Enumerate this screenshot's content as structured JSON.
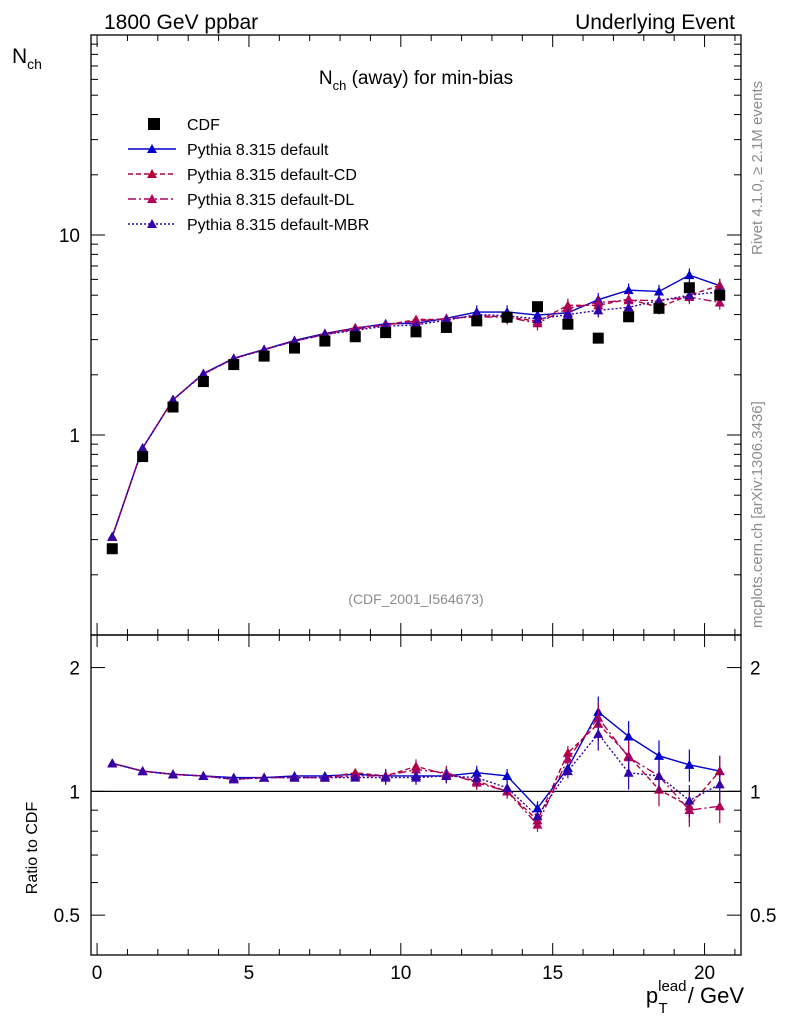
{
  "header": {
    "left": "1800 GeV ppbar",
    "right": "Underlying Event"
  },
  "side": {
    "rivet": "Rivet 4.1.0, ≥ 2.1M events",
    "mcplots": "mcplots.cern.ch [arXiv:1306.3436]"
  },
  "chart_data": {
    "type": "line",
    "title": "N_ch (away) for min-bias",
    "title_main": "N",
    "title_sub": "ch",
    "title_rest": " (away) for min-bias",
    "analysis_label": "(CDF_2001_I564673)",
    "ylabel_main": "N",
    "ylabel_sub": "ch",
    "ylabel_ratio": "Ratio to CDF",
    "xlabel_main": "p",
    "xlabel_sub": "T",
    "xlabel_sup": "lead",
    "xlabel_rest": " / GeV",
    "xlim": [
      -0.2,
      21.2
    ],
    "ylim": [
      0.1,
      100
    ],
    "yscale": "log",
    "ratio_ylim": [
      0.4,
      2.4
    ],
    "ratio_yscale": "log",
    "x_ticks": [
      0,
      5,
      10,
      15,
      20
    ],
    "x_tick_labels": [
      "0",
      "5",
      "10",
      "15",
      "20"
    ],
    "y_ticks": [
      1,
      10
    ],
    "y_tick_labels": [
      "1",
      "10"
    ],
    "ratio_ticks": [
      0.5,
      1,
      2
    ],
    "ratio_tick_labels": [
      "0.5",
      "1",
      "2"
    ],
    "x": [
      0.5,
      1.5,
      2.5,
      3.5,
      4.5,
      5.5,
      6.5,
      7.5,
      8.5,
      9.5,
      10.5,
      11.5,
      12.5,
      13.5,
      14.5,
      15.5,
      16.5,
      17.5,
      18.5,
      19.5,
      20.5
    ],
    "data": {
      "name": "CDF",
      "color": "#000000",
      "values": [
        0.27,
        0.78,
        1.38,
        1.85,
        2.25,
        2.48,
        2.72,
        2.95,
        3.1,
        3.25,
        3.28,
        3.45,
        3.72,
        3.88,
        4.38,
        3.58,
        3.05,
        3.9,
        4.3,
        5.45,
        5.0
      ]
    },
    "series": [
      {
        "name": "Pythia 8.315 default",
        "color": "#0000cc",
        "dash": "",
        "values": [
          0.31,
          0.86,
          1.5,
          2.03,
          2.42,
          2.68,
          2.97,
          3.22,
          3.42,
          3.6,
          3.62,
          3.83,
          4.12,
          4.12,
          3.98,
          4.08,
          4.75,
          5.3,
          5.22,
          6.3,
          5.58
        ],
        "ratio": [
          1.17,
          1.12,
          1.1,
          1.09,
          1.08,
          1.08,
          1.09,
          1.09,
          1.1,
          1.09,
          1.09,
          1.09,
          1.11,
          1.09,
          0.91,
          1.14,
          1.56,
          1.36,
          1.22,
          1.16,
          1.12
        ]
      },
      {
        "name": "Pythia 8.315 default-CD",
        "color": "#b0003e",
        "dash": "5,3",
        "values": [
          0.31,
          0.86,
          1.5,
          2.02,
          2.41,
          2.67,
          2.95,
          3.2,
          3.44,
          3.55,
          3.78,
          3.78,
          3.95,
          3.9,
          3.7,
          4.45,
          4.45,
          4.78,
          4.35,
          5.0,
          5.6
        ],
        "ratio": [
          1.17,
          1.12,
          1.1,
          1.09,
          1.07,
          1.08,
          1.08,
          1.08,
          1.11,
          1.09,
          1.15,
          1.1,
          1.06,
          1.0,
          0.85,
          1.24,
          1.46,
          1.22,
          1.01,
          0.92,
          1.12
        ]
      },
      {
        "name": "Pythia 8.315 default-DL",
        "color": "#b0005a",
        "dash": "8,3,2,3",
        "values": [
          0.31,
          0.86,
          1.5,
          2.02,
          2.41,
          2.67,
          2.95,
          3.18,
          3.38,
          3.55,
          3.72,
          3.82,
          3.9,
          3.88,
          3.62,
          4.3,
          4.6,
          4.72,
          4.7,
          4.9,
          4.6
        ],
        "ratio": [
          1.17,
          1.12,
          1.1,
          1.09,
          1.07,
          1.08,
          1.08,
          1.08,
          1.09,
          1.09,
          1.13,
          1.11,
          1.05,
          1.0,
          0.83,
          1.2,
          1.51,
          1.21,
          1.09,
          0.9,
          0.92
        ]
      },
      {
        "name": "Pythia 8.315 default-MBR",
        "color": "#3300aa",
        "dash": "2,2",
        "values": [
          0.31,
          0.86,
          1.5,
          2.02,
          2.41,
          2.67,
          2.95,
          3.18,
          3.34,
          3.5,
          3.55,
          3.75,
          4.0,
          3.95,
          3.8,
          4.0,
          4.2,
          4.35,
          4.7,
          5.0,
          5.2
        ],
        "ratio": [
          1.17,
          1.12,
          1.1,
          1.09,
          1.07,
          1.08,
          1.08,
          1.08,
          1.08,
          1.08,
          1.08,
          1.09,
          1.08,
          1.02,
          0.87,
          1.12,
          1.38,
          1.11,
          1.09,
          0.95,
          1.04
        ]
      }
    ],
    "legend_placement": "top-left"
  }
}
